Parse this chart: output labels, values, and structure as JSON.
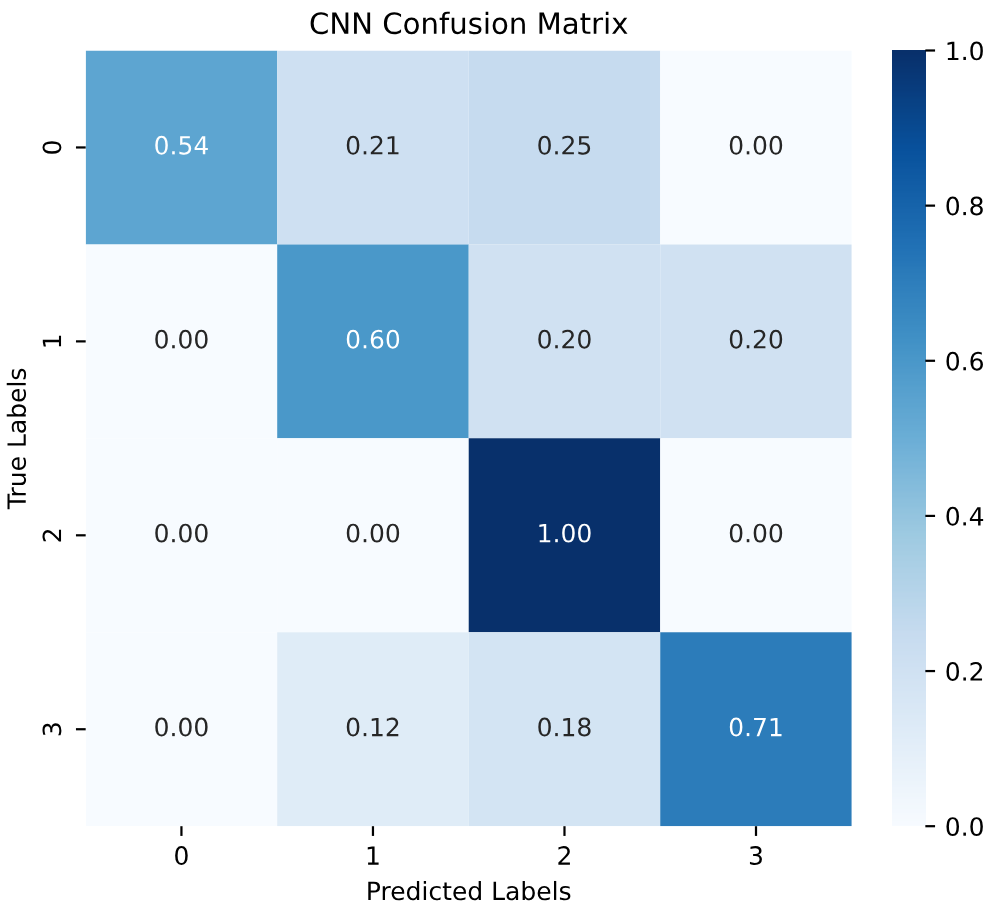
{
  "chart_data": {
    "type": "heatmap",
    "title": "CNN Confusion Matrix",
    "xlabel": "Predicted Labels",
    "ylabel": "True Labels",
    "categories": [
      "0",
      "1",
      "2",
      "3"
    ],
    "y_categories": [
      "0",
      "1",
      "2",
      "3"
    ],
    "cells": [
      [
        0.54,
        0.21,
        0.25,
        0.0
      ],
      [
        0.0,
        0.6,
        0.2,
        0.2
      ],
      [
        0.0,
        0.0,
        1.0,
        0.0
      ],
      [
        0.0,
        0.12,
        0.18,
        0.71
      ]
    ],
    "cell_labels": [
      [
        "0.54",
        "0.21",
        "0.25",
        "0.00"
      ],
      [
        "0.00",
        "0.60",
        "0.20",
        "0.20"
      ],
      [
        "0.00",
        "0.00",
        "1.00",
        "0.00"
      ],
      [
        "0.00",
        "0.12",
        "0.18",
        "0.71"
      ]
    ],
    "clim": [
      0.0,
      1.0
    ],
    "cticks": [
      {
        "value": 0.0,
        "label": "0.0"
      },
      {
        "value": 0.2,
        "label": "0.2"
      },
      {
        "value": 0.4,
        "label": "0.4"
      },
      {
        "value": 0.6,
        "label": "0.6"
      },
      {
        "value": 0.8,
        "label": "0.8"
      },
      {
        "value": 1.0,
        "label": "1.0"
      }
    ]
  }
}
